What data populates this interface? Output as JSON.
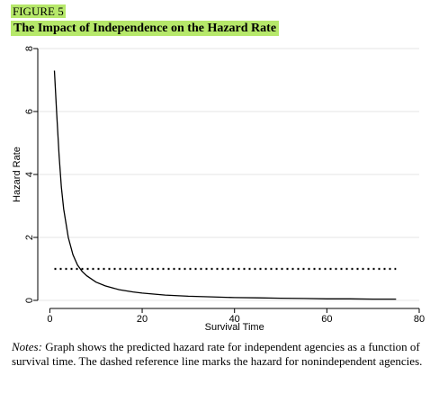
{
  "figure": {
    "label": "FIGURE 5",
    "title": "The Impact of Independence on the Hazard Rate"
  },
  "notes": {
    "prefix": "Notes:",
    "text": " Graph shows the predicted hazard rate for independent agencies as a function of survival time. The dashed reference line marks the hazard for nonindependent agencies."
  },
  "chart_data": {
    "type": "line",
    "xlabel": "Survival Time",
    "ylabel": "Hazard Rate",
    "xlim": [
      -3,
      80
    ],
    "ylim": [
      -0.2,
      8
    ],
    "xticks": [
      0,
      20,
      40,
      60,
      80
    ],
    "yticks": [
      0,
      2,
      4,
      6,
      8
    ],
    "grid": true,
    "series": [
      {
        "style": "solid",
        "x": [
          1,
          1.5,
          2,
          2.5,
          3,
          4,
          5,
          6,
          7,
          8,
          10,
          12,
          15,
          18,
          20,
          25,
          30,
          35,
          40,
          45,
          50,
          55,
          60,
          65,
          70,
          75
        ],
        "y": [
          7.3,
          5.9,
          4.6,
          3.6,
          2.9,
          2.0,
          1.45,
          1.12,
          0.92,
          0.78,
          0.58,
          0.46,
          0.34,
          0.27,
          0.23,
          0.17,
          0.13,
          0.11,
          0.09,
          0.08,
          0.07,
          0.06,
          0.05,
          0.05,
          0.04,
          0.04
        ]
      },
      {
        "style": "dashed",
        "x": [
          1,
          75
        ],
        "y": [
          1.0,
          1.0
        ]
      }
    ]
  }
}
